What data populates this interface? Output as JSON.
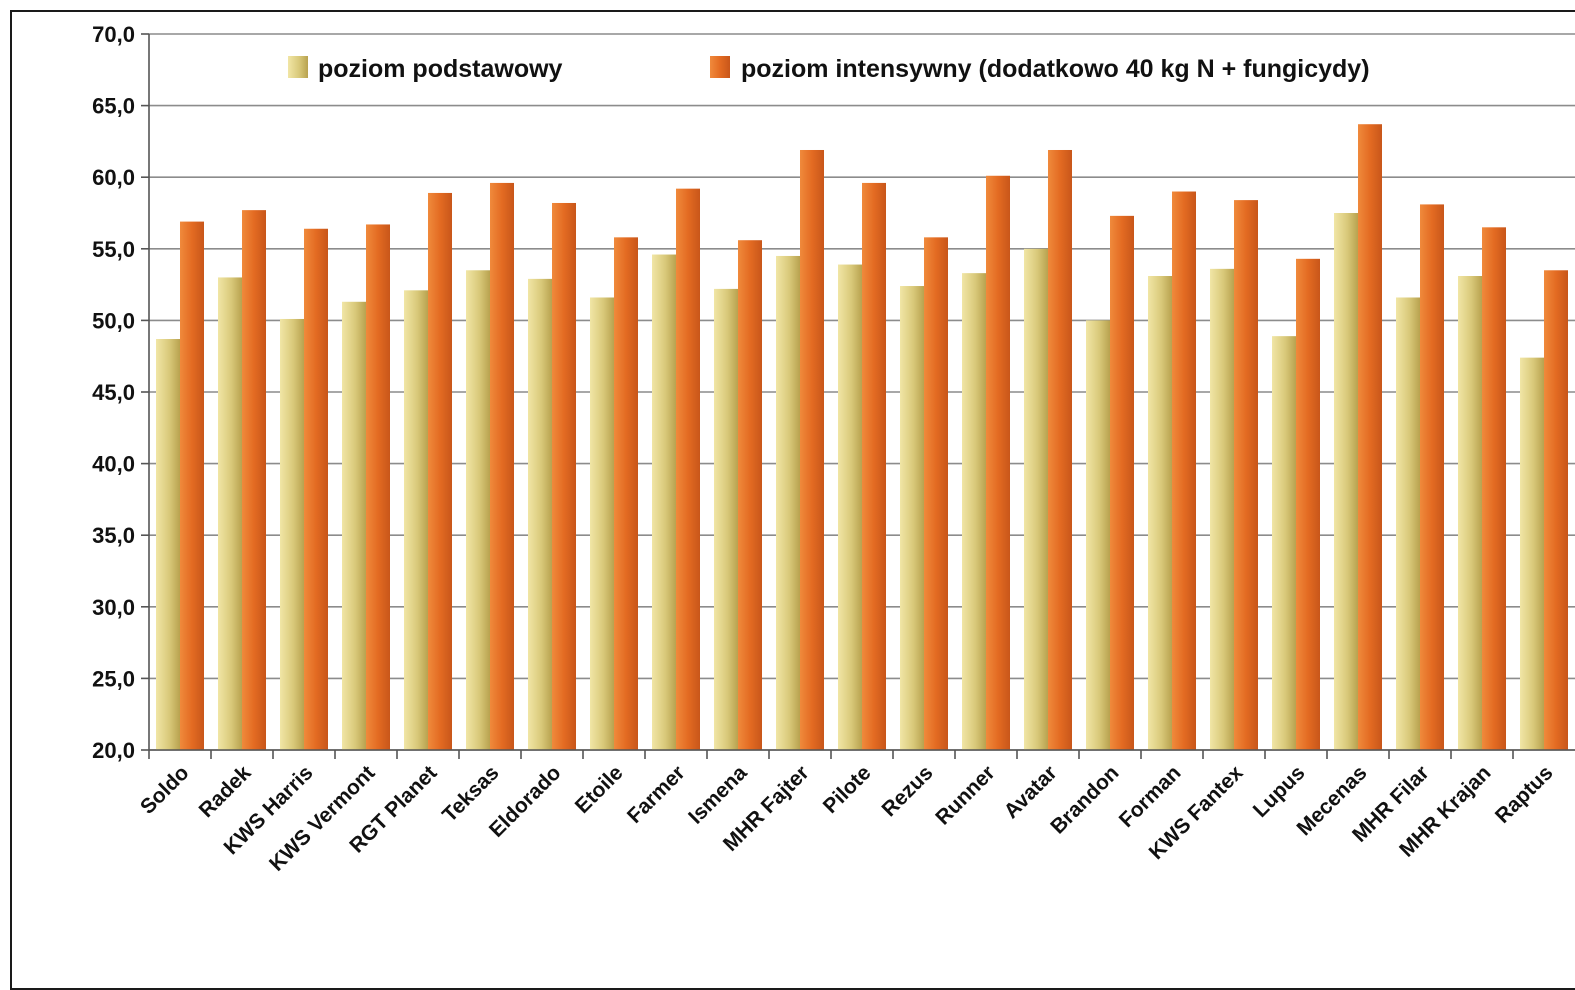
{
  "chart_data": {
    "type": "bar",
    "title": "",
    "xlabel": "",
    "ylabel": "",
    "ylim": [
      20,
      70
    ],
    "yticks": [
      "20,0",
      "25,0",
      "30,0",
      "35,0",
      "40,0",
      "45,0",
      "50,0",
      "55,0",
      "60,0",
      "65,0",
      "70,0"
    ],
    "grid": true,
    "legend_position": "top",
    "categories": [
      "Soldo",
      "Radek",
      "KWS Harris",
      "KWS Vermont",
      "RGT Planet",
      "Teksas",
      "Eldorado",
      "Etoile",
      "Farmer",
      "Ismena",
      "MHR Fajter",
      "Pilote",
      "Rezus",
      "Runner",
      "Avatar",
      "Brandon",
      "Forman",
      "KWS Fantex",
      "Lupus",
      "Mecenas",
      "MHR Filar",
      "MHR Krajan",
      "Raptus"
    ],
    "series": [
      {
        "name": "poziom podstawowy",
        "color": "#d9c97a",
        "values": [
          48.7,
          53.0,
          50.1,
          51.3,
          52.1,
          53.5,
          52.9,
          51.6,
          54.6,
          52.2,
          54.5,
          53.9,
          52.4,
          53.3,
          55.0,
          50.0,
          53.1,
          53.6,
          48.9,
          57.5,
          51.6,
          53.1,
          47.4
        ]
      },
      {
        "name": "poziom intensywny (dodatkowo 40 kg N + fungicydy)",
        "color": "#e36b22",
        "values": [
          56.9,
          57.7,
          56.4,
          56.7,
          58.9,
          59.6,
          58.2,
          55.8,
          59.2,
          55.6,
          61.9,
          59.6,
          55.8,
          60.1,
          61.9,
          57.3,
          59.0,
          58.4,
          54.3,
          63.7,
          58.1,
          56.5,
          53.5
        ]
      }
    ]
  }
}
